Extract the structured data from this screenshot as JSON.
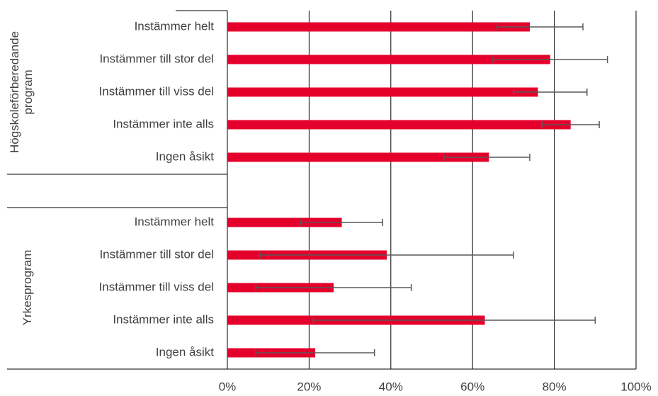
{
  "chart_data": {
    "type": "bar",
    "orientation": "horizontal",
    "color": "#e4002b",
    "error_color": "#595959",
    "grid": true,
    "xlim": [
      0,
      100
    ],
    "xticks": [
      {
        "value": 0,
        "label": "0%"
      },
      {
        "value": 20,
        "label": "20%"
      },
      {
        "value": 40,
        "label": "40%"
      },
      {
        "value": 60,
        "label": "60%"
      },
      {
        "value": 80,
        "label": "80%"
      },
      {
        "value": 100,
        "label": "100%"
      }
    ],
    "groups": [
      {
        "name": "Högskoleförberedande program",
        "categories": [
          "Instämmer helt",
          "Instämmer till stor del",
          "Instämmer till viss del",
          "Instämmer inte alls",
          "Ingen åsikt"
        ],
        "values": [
          74,
          79,
          76,
          84,
          64
        ],
        "err_minus": [
          8,
          14,
          6,
          7,
          11
        ],
        "err_plus": [
          13,
          14,
          12,
          7,
          10
        ]
      },
      {
        "name": "Yrkesprogram",
        "categories": [
          "Instämmer helt",
          "Instämmer till stor del",
          "Instämmer till viss del",
          "Instämmer inte alls",
          "Ingen åsikt"
        ],
        "values": [
          28,
          39,
          26,
          63,
          21.5
        ],
        "err_minus": [
          10,
          31,
          19,
          42,
          14.5
        ],
        "err_plus": [
          10,
          31,
          19,
          27,
          14.5
        ]
      }
    ]
  }
}
